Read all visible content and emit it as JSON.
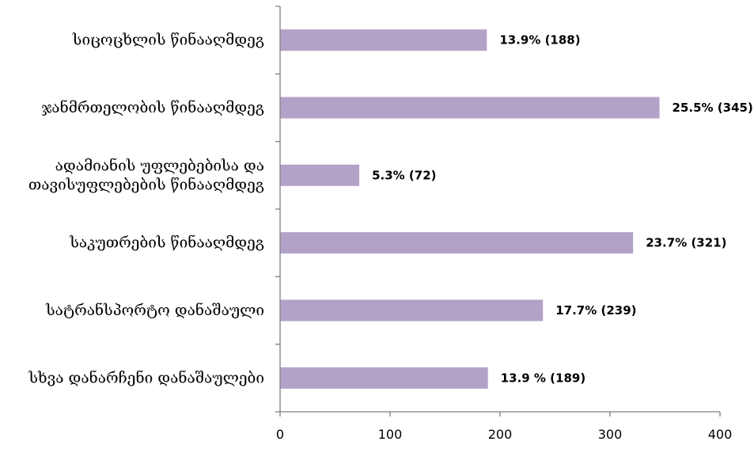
{
  "chart_data": {
    "type": "bar",
    "orientation": "horizontal",
    "title": "",
    "xlabel": "",
    "ylabel": "",
    "categories": [
      [
        "სიცოცხლის წინააღმდეგ"
      ],
      [
        "ჯანმრთელობის წინააღმდეგ"
      ],
      [
        "ადამიანის უფლებებისა და",
        "თავისუფლებების წინააღმდეგ"
      ],
      [
        "საკუთრების წინააღმდეგ"
      ],
      [
        "სატრანსპორტო დანაშაული"
      ],
      [
        "სხვა დანარჩენი დანაშაულები"
      ]
    ],
    "values": [
      188,
      345,
      72,
      321,
      239,
      189
    ],
    "data_labels": [
      "13.9% (188)",
      "25.5% (345)",
      "5.3% (72)",
      "23.7% (321)",
      "17.7% (239)",
      "13.9 % (189)"
    ],
    "xlim": [
      0,
      400
    ],
    "xticks": [
      "0",
      "100",
      "200",
      "300",
      "400"
    ],
    "bar_color": "#b3a2c7",
    "axis_color": "#808080",
    "grid": false,
    "legend": "none"
  }
}
